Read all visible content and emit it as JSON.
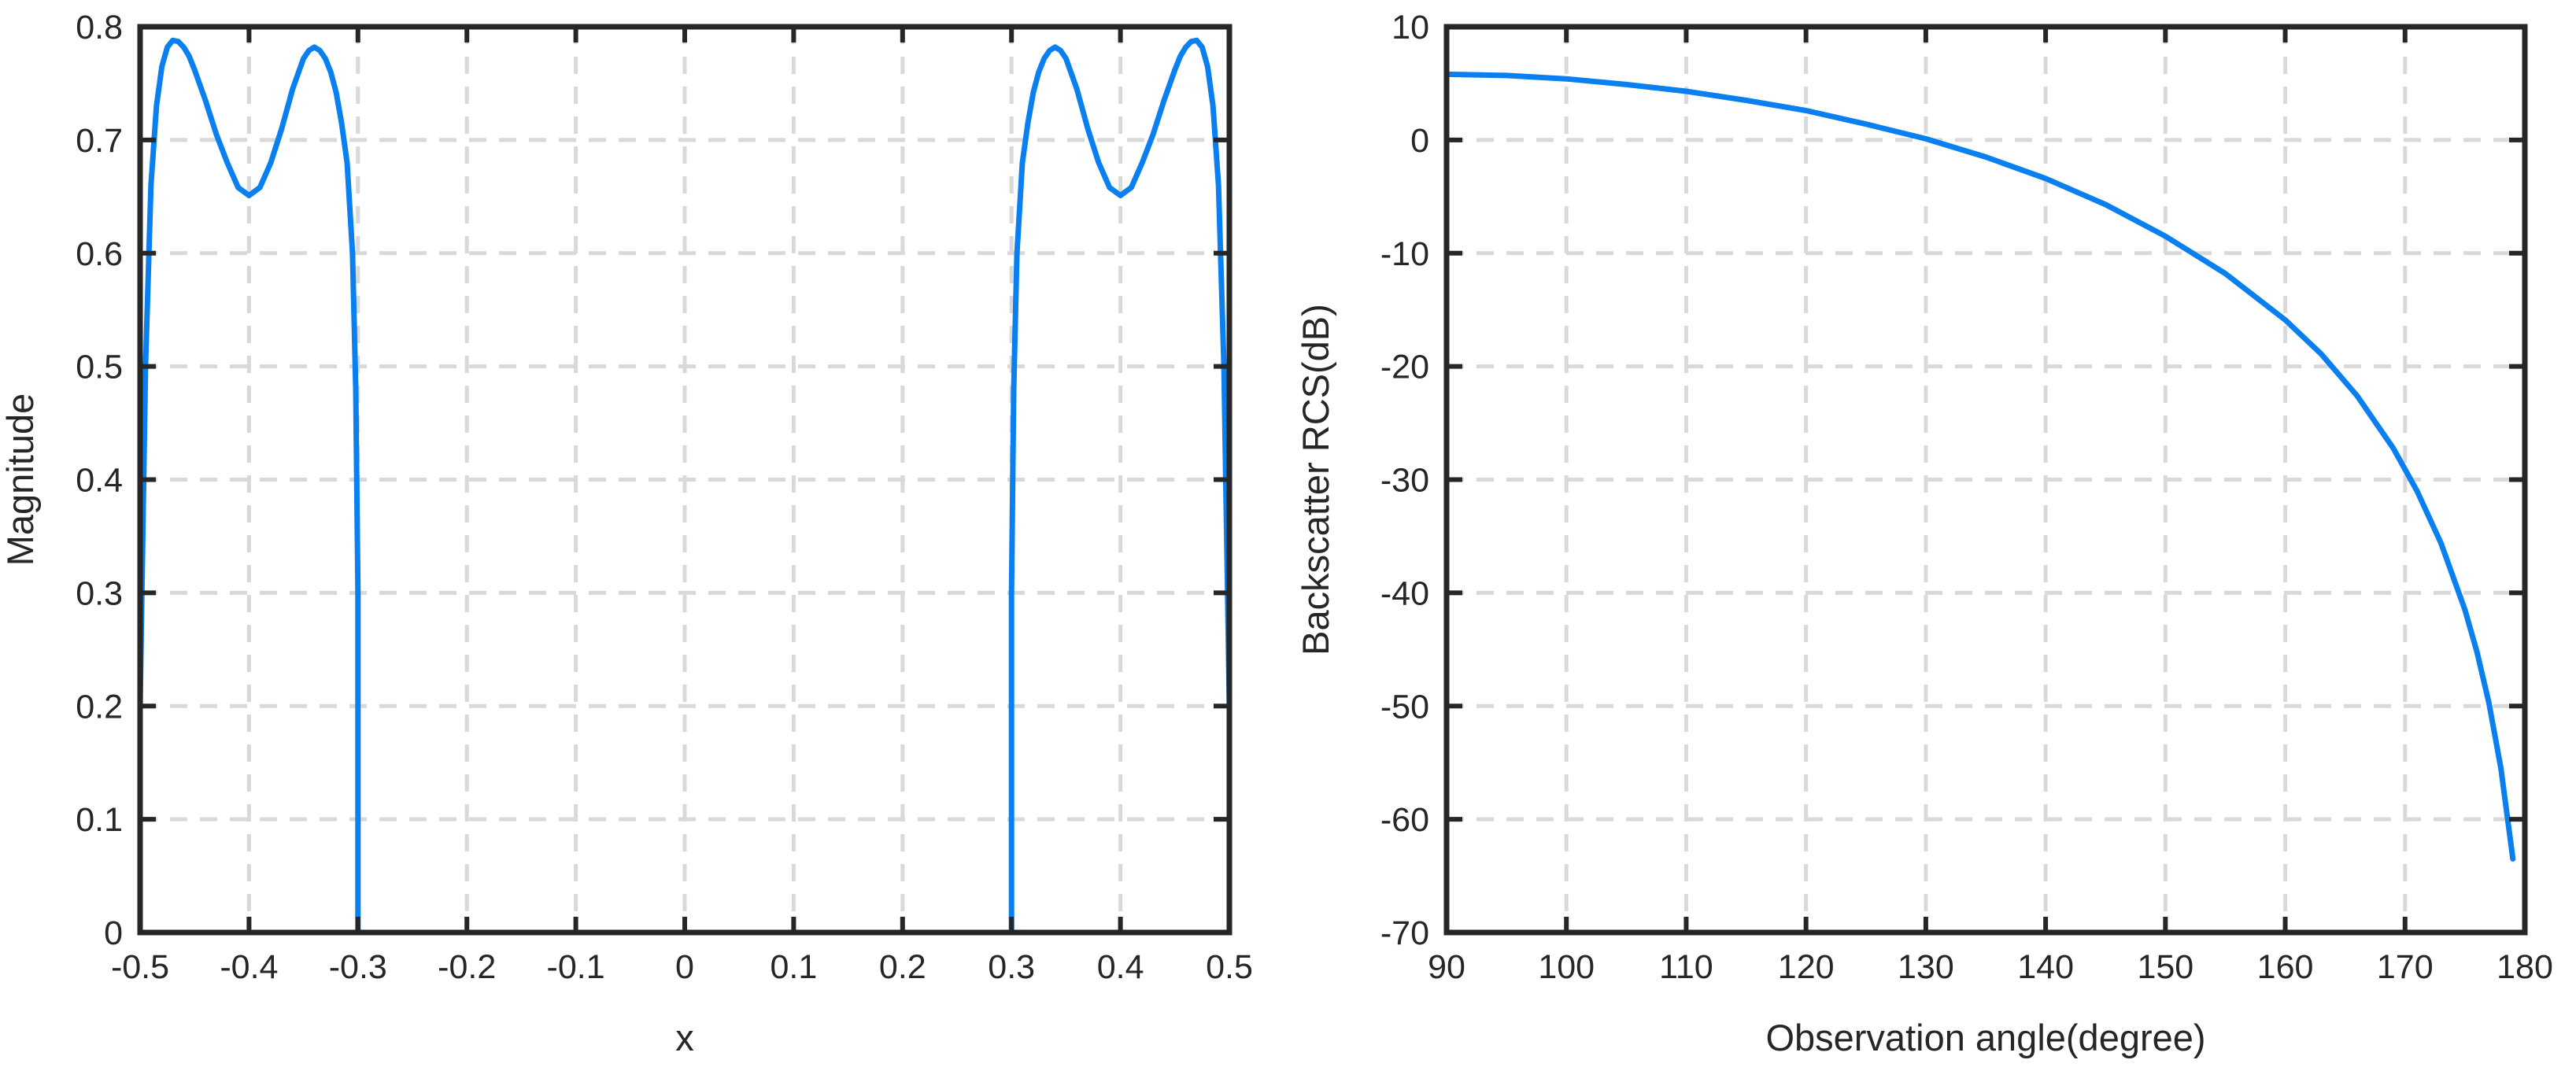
{
  "figure": {
    "line_color": "#0a7ff0"
  },
  "chart_data": [
    {
      "type": "line",
      "title": "",
      "xlabel": "x",
      "ylabel": "Magnitude",
      "xlim": [
        -0.5,
        0.5
      ],
      "ylim": [
        0,
        0.8
      ],
      "grid": true,
      "xticks": [
        -0.5,
        -0.4,
        -0.3,
        -0.2,
        -0.1,
        0,
        0.1,
        0.2,
        0.3,
        0.4,
        0.5
      ],
      "xtick_labels": [
        "-0.5",
        "-0.4",
        "-0.3",
        "-0.2",
        "-0.1",
        "0",
        "0.1",
        "0.2",
        "0.3",
        "0.4",
        "0.5"
      ],
      "yticks": [
        0,
        0.1,
        0.2,
        0.3,
        0.4,
        0.5,
        0.6,
        0.7,
        0.8
      ],
      "ytick_labels": [
        "0",
        "0.1",
        "0.2",
        "0.3",
        "0.4",
        "0.5",
        "0.6",
        "0.7",
        "0.8"
      ],
      "series": [
        {
          "name": "magnitude",
          "x": [
            -0.5,
            -0.5,
            -0.495,
            -0.49,
            -0.485,
            -0.48,
            -0.475,
            -0.47,
            -0.465,
            -0.46,
            -0.455,
            -0.45,
            -0.44,
            -0.43,
            -0.42,
            -0.41,
            -0.4,
            -0.39,
            -0.38,
            -0.37,
            -0.36,
            -0.35,
            -0.345,
            -0.34,
            -0.335,
            -0.33,
            -0.325,
            -0.32,
            -0.315,
            -0.31,
            -0.305,
            -0.302,
            -0.3,
            -0.3,
            0.3,
            0.3,
            0.302,
            0.305,
            0.31,
            0.315,
            0.32,
            0.325,
            0.33,
            0.335,
            0.34,
            0.345,
            0.35,
            0.36,
            0.37,
            0.38,
            0.39,
            0.4,
            0.41,
            0.42,
            0.43,
            0.44,
            0.45,
            0.455,
            0.46,
            0.465,
            0.47,
            0.475,
            0.48,
            0.485,
            0.49,
            0.495,
            0.5,
            0.5
          ],
          "y": [
            0,
            0.2,
            0.5,
            0.66,
            0.73,
            0.765,
            0.782,
            0.788,
            0.787,
            0.782,
            0.774,
            0.762,
            0.735,
            0.705,
            0.68,
            0.658,
            0.651,
            0.658,
            0.68,
            0.71,
            0.745,
            0.772,
            0.779,
            0.782,
            0.779,
            0.772,
            0.76,
            0.742,
            0.715,
            0.68,
            0.6,
            0.48,
            0.3,
            0,
            0,
            0.3,
            0.48,
            0.6,
            0.68,
            0.715,
            0.742,
            0.76,
            0.772,
            0.779,
            0.782,
            0.779,
            0.772,
            0.745,
            0.71,
            0.68,
            0.658,
            0.651,
            0.658,
            0.68,
            0.705,
            0.735,
            0.762,
            0.774,
            0.782,
            0.787,
            0.788,
            0.782,
            0.765,
            0.73,
            0.66,
            0.5,
            0.2,
            0
          ]
        }
      ]
    },
    {
      "type": "line",
      "title": "",
      "xlabel": "Observation angle(degree)",
      "ylabel": "Backscatter RCS(dB)",
      "xlim": [
        90,
        180
      ],
      "ylim": [
        -70,
        10
      ],
      "grid": true,
      "xticks": [
        90,
        100,
        110,
        120,
        130,
        140,
        150,
        160,
        170,
        180
      ],
      "xtick_labels": [
        "90",
        "100",
        "110",
        "120",
        "130",
        "140",
        "150",
        "160",
        "170",
        "180"
      ],
      "yticks": [
        -70,
        -60,
        -50,
        -40,
        -30,
        -20,
        -10,
        0,
        10
      ],
      "ytick_labels": [
        "-70",
        "-60",
        "-50",
        "-40",
        "-30",
        "-20",
        "-10",
        "0",
        "10"
      ],
      "series": [
        {
          "name": "backscatter RCS",
          "x": [
            90,
            95,
            100,
            105,
            110,
            115,
            120,
            125,
            130,
            135,
            140,
            145,
            150,
            155,
            160,
            163,
            166,
            169,
            171,
            173,
            175,
            176,
            177,
            178,
            179
          ],
          "y": [
            5.8,
            5.7,
            5.4,
            4.9,
            4.3,
            3.5,
            2.6,
            1.4,
            0.1,
            -1.5,
            -3.4,
            -5.7,
            -8.5,
            -11.8,
            -15.9,
            -18.9,
            -22.6,
            -27.2,
            -31.0,
            -35.6,
            -41.5,
            -45.2,
            -49.7,
            -55.5,
            -63.5
          ]
        }
      ]
    }
  ]
}
